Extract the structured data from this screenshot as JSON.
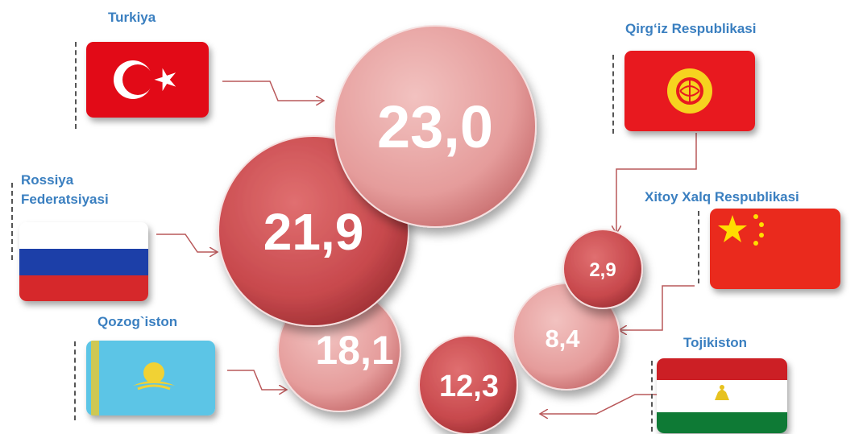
{
  "countries": [
    {
      "key": "turkiya",
      "label": "Turkiya",
      "value": "23,0",
      "flag_icon": "turkey-flag-icon"
    },
    {
      "key": "rossiya",
      "label_line1": "Rossiya",
      "label_line2": "Federatsiyasi",
      "value": "21,9",
      "flag_icon": "russia-flag-icon"
    },
    {
      "key": "qozogiston",
      "label": "Qozog`iston",
      "value": "18,1",
      "flag_icon": "kazakhstan-flag-icon"
    },
    {
      "key": "qirgiz",
      "label": "Qirg‘iz Respublikasi",
      "value": "2,9",
      "flag_icon": "kyrgyzstan-flag-icon"
    },
    {
      "key": "xitoy",
      "label": "Xitoy Xalq  Respublikasi",
      "value": "8,4",
      "flag_icon": "china-flag-icon"
    },
    {
      "key": "tojikiston",
      "label": "Tojikiston",
      "value": "12,3",
      "flag_icon": "tajikistan-flag-icon"
    }
  ],
  "colors": {
    "label_blue": "#3a7fc0",
    "bubble_dark": "#c84a4e",
    "bubble_light": "#e6a0a0",
    "arrow": "#b9585a"
  }
}
